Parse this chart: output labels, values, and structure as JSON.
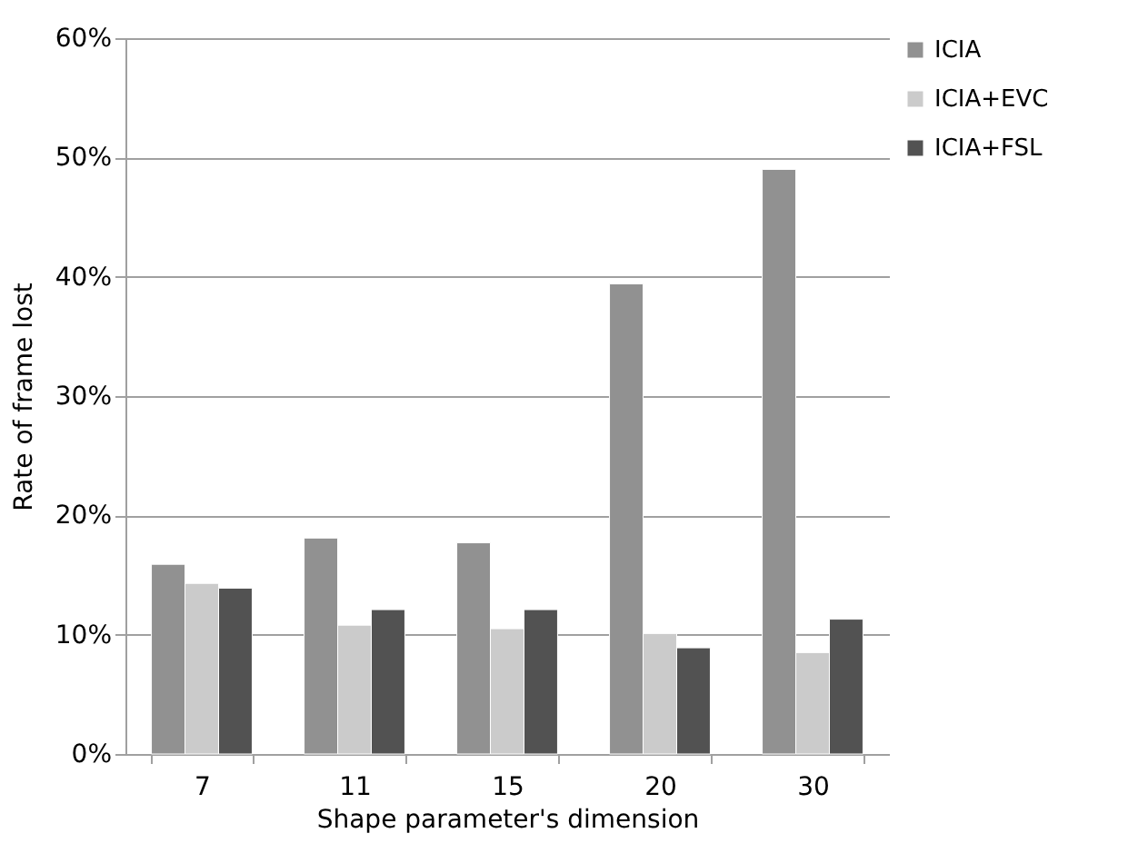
{
  "chart_data": {
    "type": "bar",
    "xlabel": "Shape parameter's dimension",
    "ylabel": "Rate of frame lost",
    "categories": [
      "7",
      "11",
      "15",
      "20",
      "30"
    ],
    "series": [
      {
        "name": "ICIA",
        "color": "#919191",
        "values": [
          15.9,
          18.1,
          17.7,
          39.4,
          49.0
        ]
      },
      {
        "name": "ICIA+EVC",
        "color": "#cbcbcb",
        "values": [
          14.3,
          10.8,
          10.5,
          10.1,
          8.5
        ]
      },
      {
        "name": "ICIA+FSL",
        "color": "#525252",
        "values": [
          13.9,
          12.1,
          12.1,
          8.9,
          11.3
        ]
      }
    ],
    "ylim": [
      0,
      60
    ],
    "yticks": [
      {
        "value": 0,
        "label": "0%"
      },
      {
        "value": 10,
        "label": "10%"
      },
      {
        "value": 20,
        "label": "20%"
      },
      {
        "value": 30,
        "label": "30%"
      },
      {
        "value": 40,
        "label": "40%"
      },
      {
        "value": 50,
        "label": "50%"
      },
      {
        "value": 60,
        "label": "60%"
      }
    ],
    "grid": "y",
    "legend": "right"
  }
}
